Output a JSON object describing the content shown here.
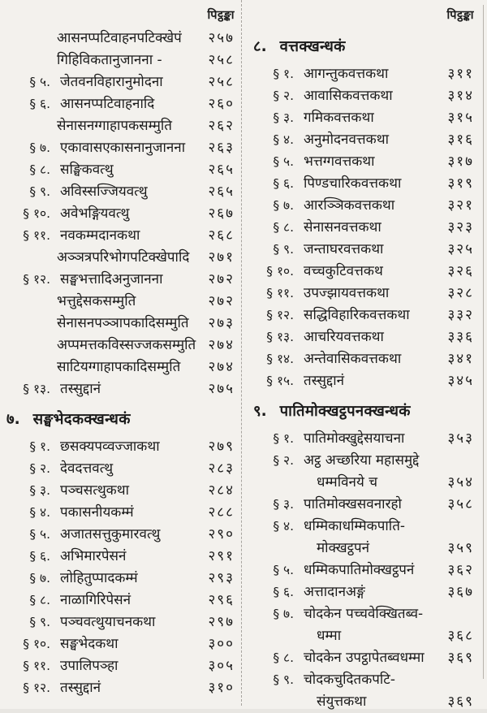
{
  "page": {
    "background": "#f3f1ed",
    "ink": "#1b1b1b"
  },
  "columns": [
    {
      "header": "पिट्ठङ्का",
      "entries": [
        {
          "t": "sub",
          "label": "आसनप्पटिवाहनपटिक्खेपं",
          "page": "२५७"
        },
        {
          "t": "sub",
          "label": "गिहिविकतानुजानना  -",
          "page": "२५८"
        },
        {
          "t": "sec",
          "m": "§ ५.",
          "label": "जेतवनविहारानुमोदना",
          "page": "२५८"
        },
        {
          "t": "sec",
          "m": "§ ६.",
          "label": "आसनप्पटिवाहनादि",
          "page": "२६०"
        },
        {
          "t": "sub",
          "label": "सेनासनग्गाहापकसम्मुति",
          "page": "२६२"
        },
        {
          "t": "sec",
          "m": "§ ७.",
          "label": "एकावासएकासनानुजानना",
          "page": "२६३"
        },
        {
          "t": "sec",
          "m": "§ ८.",
          "label": "सङ्घिकवत्थु",
          "page": "२६५"
        },
        {
          "t": "sec",
          "m": "§ ९.",
          "label": "अविस्सज्जियवत्थु",
          "page": "२६५"
        },
        {
          "t": "sec",
          "m": "§ १०.",
          "label": "अवेभङ्गियवत्थु",
          "page": "२६७"
        },
        {
          "t": "sec",
          "m": "§ ११.",
          "label": "नवकम्मदानकथा",
          "page": "२६८"
        },
        {
          "t": "sub",
          "label": "अञ्ञत्रपरिभोगपटिक्खेपादि",
          "page": "२७१"
        },
        {
          "t": "sec",
          "m": "§ १२.",
          "label": "सङ्घभत्तादिअनुजानना",
          "page": "२७२"
        },
        {
          "t": "sub",
          "label": "भत्तुद्देसकसम्मुति",
          "page": "२७२"
        },
        {
          "t": "sub",
          "label": "सेनासनपञ्ञापकादिसम्मुति",
          "page": "२७३"
        },
        {
          "t": "sub",
          "label": "अप्पमत्तकविस्सज्जकसम्मुति",
          "page": "२७४"
        },
        {
          "t": "sub",
          "label": "साटियग्गाहापकादिसम्मुति",
          "page": "२७४"
        },
        {
          "t": "sec",
          "m": "§ १३.",
          "label": "तस्सुद्दानं",
          "page": "२७५"
        },
        {
          "t": "head",
          "num": "७.",
          "label": "सङ्घभेदकक्खन्धकं"
        },
        {
          "t": "sec",
          "m": "§ १.",
          "label": "छसक्यपव्वज्जाकथा",
          "page": "२७९"
        },
        {
          "t": "sec",
          "m": "§ २.",
          "label": "देवदत्तवत्थु",
          "page": "२८३"
        },
        {
          "t": "sec",
          "m": "§ ३.",
          "label": "पञ्चसत्थुकथा",
          "page": "२८४"
        },
        {
          "t": "sec",
          "m": "§ ४.",
          "label": "पकासनीयकम्मं",
          "page": "२८८"
        },
        {
          "t": "sec",
          "m": "§ ५.",
          "label": "अजातसत्तुकुमारवत्थु",
          "page": "२९०"
        },
        {
          "t": "sec",
          "m": "§ ६.",
          "label": "अभिमारपेसनं",
          "page": "२९१"
        },
        {
          "t": "sec",
          "m": "§ ७.",
          "label": "लोहितुप्पादकम्मं",
          "page": "२९३"
        },
        {
          "t": "sec",
          "m": "§ ८.",
          "label": "नाळागिरिपेसनं",
          "page": "२९६"
        },
        {
          "t": "sec",
          "m": "§ ९.",
          "label": "पञ्चवत्थुयाचनकथा",
          "page": "२९७"
        },
        {
          "t": "sec",
          "m": "§ १०.",
          "label": "सङ्घभेदकथा",
          "page": "३००"
        },
        {
          "t": "sec",
          "m": "§ ११.",
          "label": "उपालिपञ्हा",
          "page": "३०५"
        },
        {
          "t": "sec",
          "m": "§ १२.",
          "label": "तस्सुद्दानं",
          "page": "३१०"
        }
      ]
    },
    {
      "header": "पिट्ठङ्का",
      "entries": [
        {
          "t": "head",
          "num": "८.",
          "label": "वत्तक्खन्धकं"
        },
        {
          "t": "sec",
          "m": "§ १.",
          "label": "आगन्तुकवत्तकथा",
          "page": "३११"
        },
        {
          "t": "sec",
          "m": "§ २.",
          "label": "आवासिकवत्तकथा",
          "page": "३१४"
        },
        {
          "t": "sec",
          "m": "§ ३.",
          "label": "गमिकवत्तकथा",
          "page": "३१५"
        },
        {
          "t": "sec",
          "m": "§ ४.",
          "label": "अनुमोदनवत्तकथा",
          "page": "३१६"
        },
        {
          "t": "sec",
          "m": "§ ५.",
          "label": "भत्तग्गवत्तकथा",
          "page": "३१७"
        },
        {
          "t": "sec",
          "m": "§ ६.",
          "label": "पिण्डचारिकवत्तकथा",
          "page": "३१९"
        },
        {
          "t": "sec",
          "m": "§ ७.",
          "label": "आरञ्ञिकवत्तकथा",
          "page": "३२१"
        },
        {
          "t": "sec",
          "m": "§ ८.",
          "label": "सेनासनवत्तकथा",
          "page": "३२३"
        },
        {
          "t": "sec",
          "m": "§ ९.",
          "label": "जन्ताघरवत्तकथा",
          "page": "३२५"
        },
        {
          "t": "sec",
          "m": "§ १०.",
          "label": "वच्चकुटिवत्तकथ",
          "page": "३२६"
        },
        {
          "t": "sec",
          "m": "§ ११.",
          "label": "उपज्झायवत्तकथा",
          "page": "३२८"
        },
        {
          "t": "sec",
          "m": "§ १२.",
          "label": "सद्धिविहारिकवत्तकथा",
          "page": "३३२"
        },
        {
          "t": "sec",
          "m": "§ १३.",
          "label": "आचरियवत्तकथा",
          "page": "३३६"
        },
        {
          "t": "sec",
          "m": "§ १४.",
          "label": "अन्तेवासिकवत्तकथा",
          "page": "३४१"
        },
        {
          "t": "sec",
          "m": "§ १५.",
          "label": "तस्सुद्दानं",
          "page": "३४५"
        },
        {
          "t": "head",
          "num": "९.",
          "label": "पातिमोक्खट्ठपनक्खन्धकं"
        },
        {
          "t": "sec",
          "m": "§ १.",
          "label": "पातिमोक्खुद्देसयाचना",
          "page": "३५३"
        },
        {
          "t": "sec2",
          "m": "§ २.",
          "line1": "अट्ठ अच्छरिया महासमुद्दे",
          "line2": "धम्मविनये च",
          "page": "३५४"
        },
        {
          "t": "sec",
          "m": "§ ३.",
          "label": "पातिमोक्खसवनारहो",
          "page": "३५८"
        },
        {
          "t": "sec2",
          "m": "§ ४.",
          "line1": "धम्मिकाधम्मिकपाति-",
          "line2": "मोक्खट्ठपनं",
          "page": "३५९"
        },
        {
          "t": "sec",
          "m": "§ ५.",
          "label": "धम्मिकपातिमोक्खट्ठपनं",
          "page": "३६२"
        },
        {
          "t": "sec",
          "m": "§ ६.",
          "label": "अत्तादानअङ्गं",
          "page": "३६७"
        },
        {
          "t": "sec2",
          "m": "§ ७.",
          "line1": "चोदकेन पच्चवेक्खितब्व-",
          "line2": "धम्मा",
          "page": "३६८"
        },
        {
          "t": "sec",
          "m": "§ ८.",
          "label": "चोदकेन उपट्ठापेतब्वधम्मा",
          "page": "३६९"
        },
        {
          "t": "sec2",
          "m": "§ ९.",
          "line1": "चोदकचुदितकपटि-",
          "line2": "संयुत्तकथा",
          "page": "३६९"
        }
      ]
    }
  ]
}
